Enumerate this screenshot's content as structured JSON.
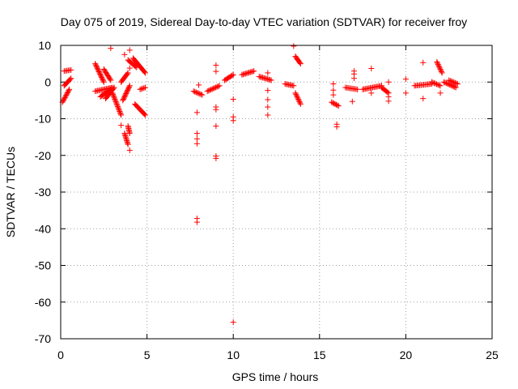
{
  "chart_data": {
    "type": "scatter",
    "title": "Day 075 of 2019, Sidereal Day-to-day VTEC variation (SDTVAR) for receiver froy",
    "xlabel": "GPS time / hours",
    "ylabel": "SDTVAR / TECUs",
    "xlim": [
      0,
      25
    ],
    "ylim": [
      -70,
      10
    ],
    "xticks": [
      0,
      5,
      10,
      15,
      20,
      25
    ],
    "yticks": [
      10,
      0,
      -10,
      -20,
      -30,
      -40,
      -50,
      -60,
      -70
    ],
    "xtick_labels": [
      "0",
      "5",
      "10",
      "15",
      "20",
      "25"
    ],
    "ytick_labels": [
      "10",
      "0",
      "-10",
      "-20",
      "-30",
      "-40",
      "-50",
      "-60",
      "-70"
    ],
    "grid": true,
    "marker": "+",
    "color": "#ff0000",
    "series": [
      {
        "name": "SDTVAR",
        "segments": [
          [
            0.2,
            3.0,
            0.6,
            3.3
          ],
          [
            0.2,
            -1.0,
            0.6,
            1.0
          ],
          [
            0.1,
            -5.5,
            0.5,
            -2.0
          ],
          [
            2.0,
            5.0,
            2.5,
            0.0
          ],
          [
            2.0,
            -2.5,
            3.0,
            -1.5
          ],
          [
            2.3,
            -4.0,
            2.9,
            -2.0
          ],
          [
            2.5,
            3.5,
            2.9,
            0.5
          ],
          [
            2.6,
            -4.5,
            3.1,
            -1.5
          ],
          [
            3.0,
            -3.0,
            3.5,
            -9.0
          ],
          [
            3.5,
            0.0,
            3.9,
            2.5
          ],
          [
            3.6,
            -5.0,
            4.0,
            -1.0
          ],
          [
            3.7,
            -14.0,
            3.9,
            -17.0
          ],
          [
            3.9,
            -12.0,
            4.0,
            -14.0
          ],
          [
            3.9,
            6.0,
            4.4,
            4.0
          ],
          [
            4.2,
            6.5,
            4.9,
            2.5
          ],
          [
            4.3,
            -6.0,
            4.9,
            -9.0
          ],
          [
            4.6,
            -2.0,
            4.9,
            -1.5
          ],
          [
            7.7,
            -2.5,
            8.2,
            -3.5
          ],
          [
            8.5,
            -2.5,
            9.2,
            -1.0
          ],
          [
            9.5,
            0.5,
            10.0,
            2.0
          ],
          [
            10.5,
            2.0,
            11.2,
            3.0
          ],
          [
            11.5,
            1.5,
            12.2,
            0.5
          ],
          [
            13.0,
            -0.5,
            13.5,
            -1.0
          ],
          [
            13.6,
            7.0,
            13.9,
            5.0
          ],
          [
            13.6,
            -3.0,
            13.9,
            -6.0
          ],
          [
            15.7,
            -5.5,
            16.1,
            -6.5
          ],
          [
            16.5,
            -1.5,
            17.2,
            -2.0
          ],
          [
            17.5,
            -2.0,
            18.6,
            -1.0
          ],
          [
            18.6,
            -1.5,
            19.0,
            -3.0
          ],
          [
            20.5,
            -1.0,
            21.5,
            -0.5
          ],
          [
            21.5,
            0.0,
            22.0,
            -1.0
          ],
          [
            21.8,
            5.5,
            22.1,
            2.5
          ],
          [
            22.2,
            0.0,
            22.9,
            -1.5
          ],
          [
            22.5,
            0.5,
            23.0,
            -0.5
          ]
        ],
        "points": [
          [
            2.9,
            9.2
          ],
          [
            4.0,
            8.7
          ],
          [
            3.7,
            7.5
          ],
          [
            4.0,
            3.8
          ],
          [
            3.5,
            -11.8
          ],
          [
            4.0,
            -18.6
          ],
          [
            8.0,
            -0.8
          ],
          [
            7.9,
            -8.3
          ],
          [
            7.9,
            -14.0
          ],
          [
            7.9,
            -15.5
          ],
          [
            7.9,
            -16.8
          ],
          [
            7.9,
            -37.2
          ],
          [
            7.9,
            -38.2
          ],
          [
            9.0,
            4.6
          ],
          [
            9.0,
            2.9
          ],
          [
            9.0,
            -6.8
          ],
          [
            9.0,
            -7.5
          ],
          [
            9.0,
            -12.0
          ],
          [
            9.0,
            -20.2
          ],
          [
            9.0,
            -20.8
          ],
          [
            10.0,
            -4.7
          ],
          [
            10.0,
            -9.5
          ],
          [
            10.0,
            -10.5
          ],
          [
            10.0,
            -65.5
          ],
          [
            12.0,
            2.5
          ],
          [
            12.0,
            -2.3
          ],
          [
            12.0,
            -4.8
          ],
          [
            12.0,
            -6.8
          ],
          [
            12.0,
            -9.0
          ],
          [
            13.5,
            9.8
          ],
          [
            15.8,
            -0.5
          ],
          [
            15.8,
            -2.2
          ],
          [
            15.8,
            -3.5
          ],
          [
            16.0,
            -11.5
          ],
          [
            16.0,
            -12.2
          ],
          [
            17.0,
            3.0
          ],
          [
            17.0,
            2.2
          ],
          [
            17.0,
            1.0
          ],
          [
            16.9,
            -5.3
          ],
          [
            18.0,
            3.7
          ],
          [
            18.0,
            -3.0
          ],
          [
            19.0,
            0.0
          ],
          [
            19.0,
            -4.0
          ],
          [
            19.0,
            -5.2
          ],
          [
            20.0,
            0.8
          ],
          [
            20.0,
            -3.0
          ],
          [
            21.0,
            5.3
          ],
          [
            21.0,
            -4.5
          ],
          [
            22.0,
            -3.0
          ]
        ]
      }
    ]
  }
}
